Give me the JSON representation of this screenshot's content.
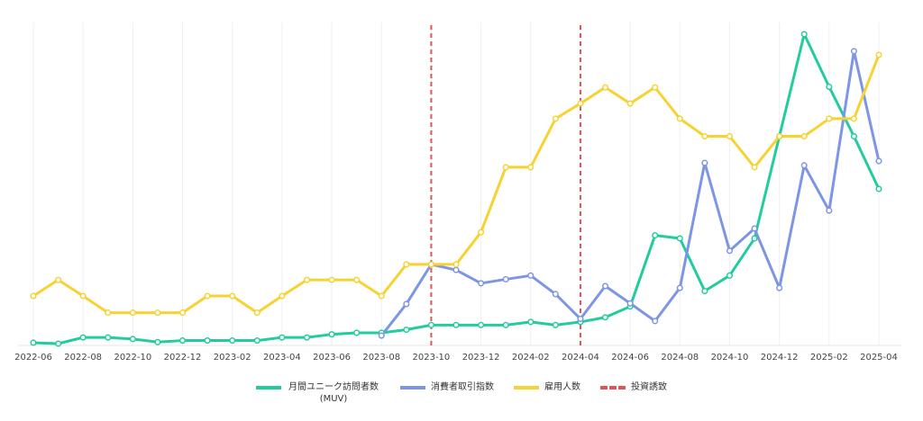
{
  "chart_data": {
    "type": "line",
    "categories": [
      "2022-06",
      null,
      "2022-08",
      null,
      "2022-10",
      null,
      "2022-12",
      null,
      "2023-02",
      null,
      "2023-04",
      null,
      "2023-06",
      null,
      "2023-08",
      null,
      "2023-10",
      null,
      "2023-12",
      null,
      "2024-02",
      null,
      "2024-04",
      null,
      "2024-06",
      null,
      "2024-08",
      null,
      "2024-10",
      null,
      "2024-12",
      null,
      "2025-02",
      null,
      "2025-04"
    ],
    "series": [
      {
        "name": "月間ユニーク訪問者数 (MUV)",
        "color": "#22cc9e",
        "values": [
          0.3,
          0,
          2,
          2,
          1.5,
          0.5,
          1,
          1,
          1,
          1,
          2,
          2,
          3,
          3.5,
          3.5,
          4.5,
          6,
          6,
          6,
          6,
          7,
          6,
          7,
          8.5,
          12,
          35,
          34,
          17,
          22,
          34,
          67,
          100,
          83,
          67,
          50
        ]
      },
      {
        "name": "消費者取引指数",
        "color": "#7d95e6",
        "values": [
          null,
          null,
          null,
          null,
          null,
          null,
          null,
          null,
          null,
          null,
          null,
          null,
          null,
          null,
          2.6,
          12.8,
          25.6,
          23.8,
          19.5,
          20.8,
          22,
          16,
          8,
          18.6,
          13,
          7.3,
          18,
          58.4,
          30,
          37.2,
          18,
          57.6,
          43,
          94.5,
          59
        ]
      },
      {
        "name": "雇用人数",
        "color": "#f6d232",
        "values": [
          15.4,
          20.6,
          15.4,
          10,
          10,
          10,
          10,
          15.4,
          15.4,
          10,
          15.4,
          20.6,
          20.6,
          20.6,
          15.4,
          25.6,
          25.6,
          25.6,
          36,
          57,
          57,
          72.7,
          77.6,
          82.8,
          77.6,
          82.8,
          72.7,
          67,
          67,
          57,
          67,
          67,
          72.7,
          72.7,
          93.3
        ]
      }
    ],
    "events": {
      "name": "投資誘致",
      "color": "#e05555",
      "at": [
        "2023-10",
        "2024-04"
      ]
    },
    "ylim": [
      0,
      100
    ],
    "grid": true
  }
}
